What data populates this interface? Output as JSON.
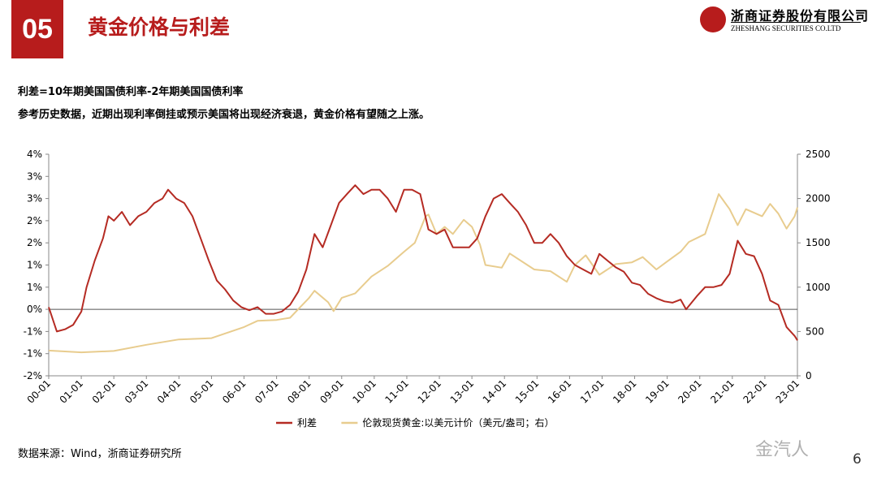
{
  "header": {
    "number": "05",
    "title": "黄金价格与利差",
    "logo_cn": "浙商证券股份有限公司",
    "logo_en": "ZHESHANG SECURITIES CO.LTD"
  },
  "notes": {
    "line1": "利差=10年期美国国债利率-2年期美国国债利率",
    "line2": "参考历史数据，近期出现利率倒挂或预示美国将出现经济衰退，黄金价格有望随之上涨。"
  },
  "footer": {
    "source": "数据来源：Wind，浙商证券研究所",
    "watermark": "金汽人",
    "page_number": "6"
  },
  "chart_data": {
    "type": "line",
    "title": "",
    "xlabel": "",
    "ylabel": "",
    "categories": [
      "00-01",
      "01-01",
      "02-01",
      "03-01",
      "04-01",
      "05-01",
      "06-01",
      "07-01",
      "08-01",
      "09-01",
      "10-01",
      "11-01",
      "12-01",
      "13-01",
      "14-01",
      "15-01",
      "16-01",
      "17-01",
      "18-01",
      "19-01",
      "20-01",
      "21-01",
      "22-01",
      "23-01"
    ],
    "y_left": {
      "ticks": [
        "4%",
        "3%",
        "3%",
        "2%",
        "2%",
        "1%",
        "1%",
        "0%",
        "-1%",
        "-1%",
        "-2%"
      ],
      "range": [
        -1.5,
        3.5
      ]
    },
    "y_right": {
      "ticks": [
        2500,
        2000,
        1500,
        1000,
        500,
        0
      ],
      "range": [
        0,
        2500
      ]
    },
    "legend_position": "bottom",
    "series": [
      {
        "name": "利差",
        "axis": "left",
        "color": "#b52b23",
        "points": [
          [
            "2000-01",
            0.05
          ],
          [
            "2000-04",
            -0.5
          ],
          [
            "2000-07",
            -0.45
          ],
          [
            "2000-10",
            -0.35
          ],
          [
            "2001-01",
            -0.05
          ],
          [
            "2001-03",
            0.5
          ],
          [
            "2001-06",
            1.1
          ],
          [
            "2001-09",
            1.6
          ],
          [
            "2001-11",
            2.1
          ],
          [
            "2002-01",
            2.0
          ],
          [
            "2002-04",
            2.2
          ],
          [
            "2002-07",
            1.9
          ],
          [
            "2002-10",
            2.1
          ],
          [
            "2003-01",
            2.2
          ],
          [
            "2003-04",
            2.4
          ],
          [
            "2003-07",
            2.5
          ],
          [
            "2003-09",
            2.7
          ],
          [
            "2003-12",
            2.5
          ],
          [
            "2004-03",
            2.4
          ],
          [
            "2004-06",
            2.1
          ],
          [
            "2004-09",
            1.6
          ],
          [
            "2004-12",
            1.1
          ],
          [
            "2005-03",
            0.65
          ],
          [
            "2005-06",
            0.45
          ],
          [
            "2005-09",
            0.2
          ],
          [
            "2005-12",
            0.05
          ],
          [
            "2006-03",
            -0.02
          ],
          [
            "2006-06",
            0.05
          ],
          [
            "2006-09",
            -0.1
          ],
          [
            "2006-12",
            -0.1
          ],
          [
            "2007-03",
            -0.05
          ],
          [
            "2007-06",
            0.1
          ],
          [
            "2007-09",
            0.4
          ],
          [
            "2007-12",
            0.9
          ],
          [
            "2008-03",
            1.7
          ],
          [
            "2008-06",
            1.4
          ],
          [
            "2008-09",
            1.9
          ],
          [
            "2008-12",
            2.4
          ],
          [
            "2009-03",
            2.6
          ],
          [
            "2009-06",
            2.8
          ],
          [
            "2009-09",
            2.6
          ],
          [
            "2009-12",
            2.7
          ],
          [
            "2010-03",
            2.7
          ],
          [
            "2010-06",
            2.5
          ],
          [
            "2010-09",
            2.2
          ],
          [
            "2010-12",
            2.7
          ],
          [
            "2011-03",
            2.7
          ],
          [
            "2011-06",
            2.6
          ],
          [
            "2011-09",
            1.8
          ],
          [
            "2011-12",
            1.7
          ],
          [
            "2012-03",
            1.8
          ],
          [
            "2012-06",
            1.4
          ],
          [
            "2012-09",
            1.4
          ],
          [
            "2012-12",
            1.4
          ],
          [
            "2013-03",
            1.6
          ],
          [
            "2013-06",
            2.1
          ],
          [
            "2013-09",
            2.5
          ],
          [
            "2013-12",
            2.6
          ],
          [
            "2014-03",
            2.4
          ],
          [
            "2014-06",
            2.2
          ],
          [
            "2014-09",
            1.9
          ],
          [
            "2014-12",
            1.5
          ],
          [
            "2015-03",
            1.5
          ],
          [
            "2015-06",
            1.7
          ],
          [
            "2015-09",
            1.5
          ],
          [
            "2015-12",
            1.2
          ],
          [
            "2016-03",
            1.0
          ],
          [
            "2016-06",
            0.9
          ],
          [
            "2016-09",
            0.8
          ],
          [
            "2016-12",
            1.25
          ],
          [
            "2017-03",
            1.1
          ],
          [
            "2017-06",
            0.95
          ],
          [
            "2017-09",
            0.85
          ],
          [
            "2017-12",
            0.6
          ],
          [
            "2018-03",
            0.55
          ],
          [
            "2018-06",
            0.35
          ],
          [
            "2018-09",
            0.25
          ],
          [
            "2018-12",
            0.18
          ],
          [
            "2019-03",
            0.15
          ],
          [
            "2019-06",
            0.22
          ],
          [
            "2019-08",
            0.0
          ],
          [
            "2019-12",
            0.3
          ],
          [
            "2020-03",
            0.5
          ],
          [
            "2020-06",
            0.5
          ],
          [
            "2020-09",
            0.55
          ],
          [
            "2020-12",
            0.8
          ],
          [
            "2021-03",
            1.55
          ],
          [
            "2021-06",
            1.25
          ],
          [
            "2021-09",
            1.2
          ],
          [
            "2021-12",
            0.8
          ],
          [
            "2022-03",
            0.2
          ],
          [
            "2022-06",
            0.1
          ],
          [
            "2022-09",
            -0.4
          ],
          [
            "2022-12",
            -0.6
          ],
          [
            "2023-01",
            -0.7
          ]
        ]
      },
      {
        "name": "伦敦现货黄金:以美元计价（美元/盎司；右）",
        "axis": "right",
        "color": "#e8cc8e",
        "points": [
          [
            "2000-01",
            285
          ],
          [
            "2001-01",
            265
          ],
          [
            "2002-01",
            280
          ],
          [
            "2003-01",
            350
          ],
          [
            "2004-01",
            410
          ],
          [
            "2005-01",
            425
          ],
          [
            "2006-01",
            550
          ],
          [
            "2006-06",
            620
          ],
          [
            "2007-01",
            630
          ],
          [
            "2007-06",
            655
          ],
          [
            "2008-01",
            880
          ],
          [
            "2008-03",
            960
          ],
          [
            "2008-08",
            830
          ],
          [
            "2008-10",
            730
          ],
          [
            "2009-01",
            880
          ],
          [
            "2009-06",
            930
          ],
          [
            "2009-12",
            1120
          ],
          [
            "2010-06",
            1240
          ],
          [
            "2010-12",
            1400
          ],
          [
            "2011-04",
            1500
          ],
          [
            "2011-08",
            1800
          ],
          [
            "2011-09",
            1820
          ],
          [
            "2011-12",
            1600
          ],
          [
            "2012-03",
            1680
          ],
          [
            "2012-06",
            1600
          ],
          [
            "2012-10",
            1760
          ],
          [
            "2013-01",
            1680
          ],
          [
            "2013-04",
            1480
          ],
          [
            "2013-06",
            1250
          ],
          [
            "2013-12",
            1220
          ],
          [
            "2014-03",
            1380
          ],
          [
            "2014-12",
            1200
          ],
          [
            "2015-06",
            1180
          ],
          [
            "2015-12",
            1060
          ],
          [
            "2016-03",
            1250
          ],
          [
            "2016-07",
            1360
          ],
          [
            "2016-12",
            1140
          ],
          [
            "2017-06",
            1260
          ],
          [
            "2017-12",
            1280
          ],
          [
            "2018-04",
            1340
          ],
          [
            "2018-09",
            1200
          ],
          [
            "2019-01",
            1290
          ],
          [
            "2019-06",
            1400
          ],
          [
            "2019-09",
            1510
          ],
          [
            "2020-03",
            1600
          ],
          [
            "2020-08",
            2050
          ],
          [
            "2020-12",
            1880
          ],
          [
            "2021-03",
            1700
          ],
          [
            "2021-06",
            1880
          ],
          [
            "2021-12",
            1800
          ],
          [
            "2022-03",
            1940
          ],
          [
            "2022-06",
            1830
          ],
          [
            "2022-09",
            1660
          ],
          [
            "2022-12",
            1800
          ],
          [
            "2023-01",
            1900
          ]
        ]
      }
    ]
  }
}
